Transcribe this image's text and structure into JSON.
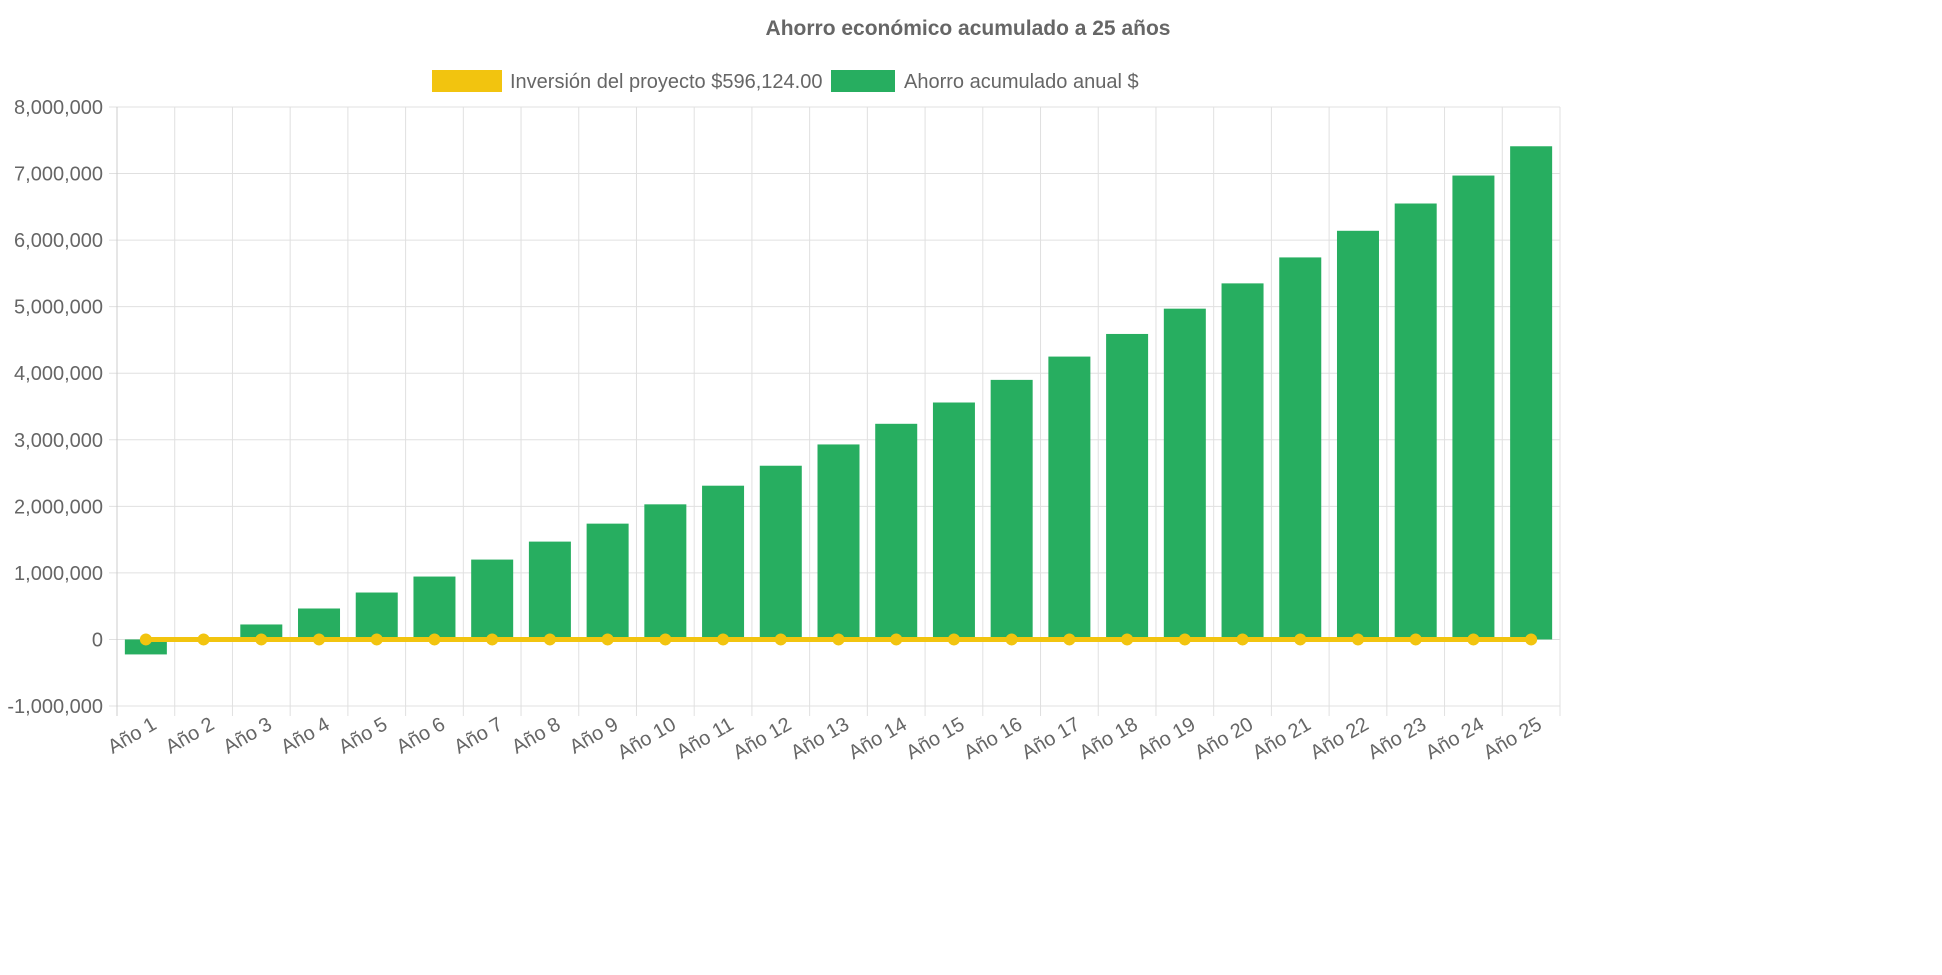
{
  "chart_data": {
    "type": "bar",
    "title": "Ahorro económico acumulado a 25 años",
    "categories": [
      "Año 1",
      "Año 2",
      "Año 3",
      "Año 4",
      "Año 5",
      "Año 6",
      "Año 7",
      "Año 8",
      "Año 9",
      "Año 10",
      "Año 11",
      "Año 12",
      "Año 13",
      "Año 14",
      "Año 15",
      "Año 16",
      "Año 17",
      "Año 18",
      "Año 19",
      "Año 20",
      "Año 21",
      "Año 22",
      "Año 23",
      "Año 24",
      "Año 25"
    ],
    "series": [
      {
        "name": "Inversión del proyecto $596,124.00",
        "type": "line",
        "color": "#f2c40f",
        "values": [
          0,
          0,
          0,
          0,
          0,
          0,
          0,
          0,
          0,
          0,
          0,
          0,
          0,
          0,
          0,
          0,
          0,
          0,
          0,
          0,
          0,
          0,
          0,
          0,
          0
        ]
      },
      {
        "name": "Ahorro acumulado anual $",
        "type": "bar",
        "color": "#27ae60",
        "values": [
          -225000,
          0,
          225000,
          465000,
          705000,
          945000,
          1200000,
          1470000,
          1740000,
          2030000,
          2310000,
          2610000,
          2930000,
          3240000,
          3560000,
          3900000,
          4250000,
          4590000,
          4970000,
          5350000,
          5740000,
          6140000,
          6550000,
          6970000,
          7410000
        ]
      }
    ],
    "ylim": [
      -1000000,
      8000000
    ],
    "yticks": [
      "8,000,000",
      "7,000,000",
      "6,000,000",
      "5,000,000",
      "4,000,000",
      "3,000,000",
      "2,000,000",
      "1,000,000",
      "0",
      "-1,000,000"
    ],
    "ytick_values": [
      8000000,
      7000000,
      6000000,
      5000000,
      4000000,
      3000000,
      2000000,
      1000000,
      0,
      -1000000
    ],
    "grid": true,
    "legend": "top"
  }
}
